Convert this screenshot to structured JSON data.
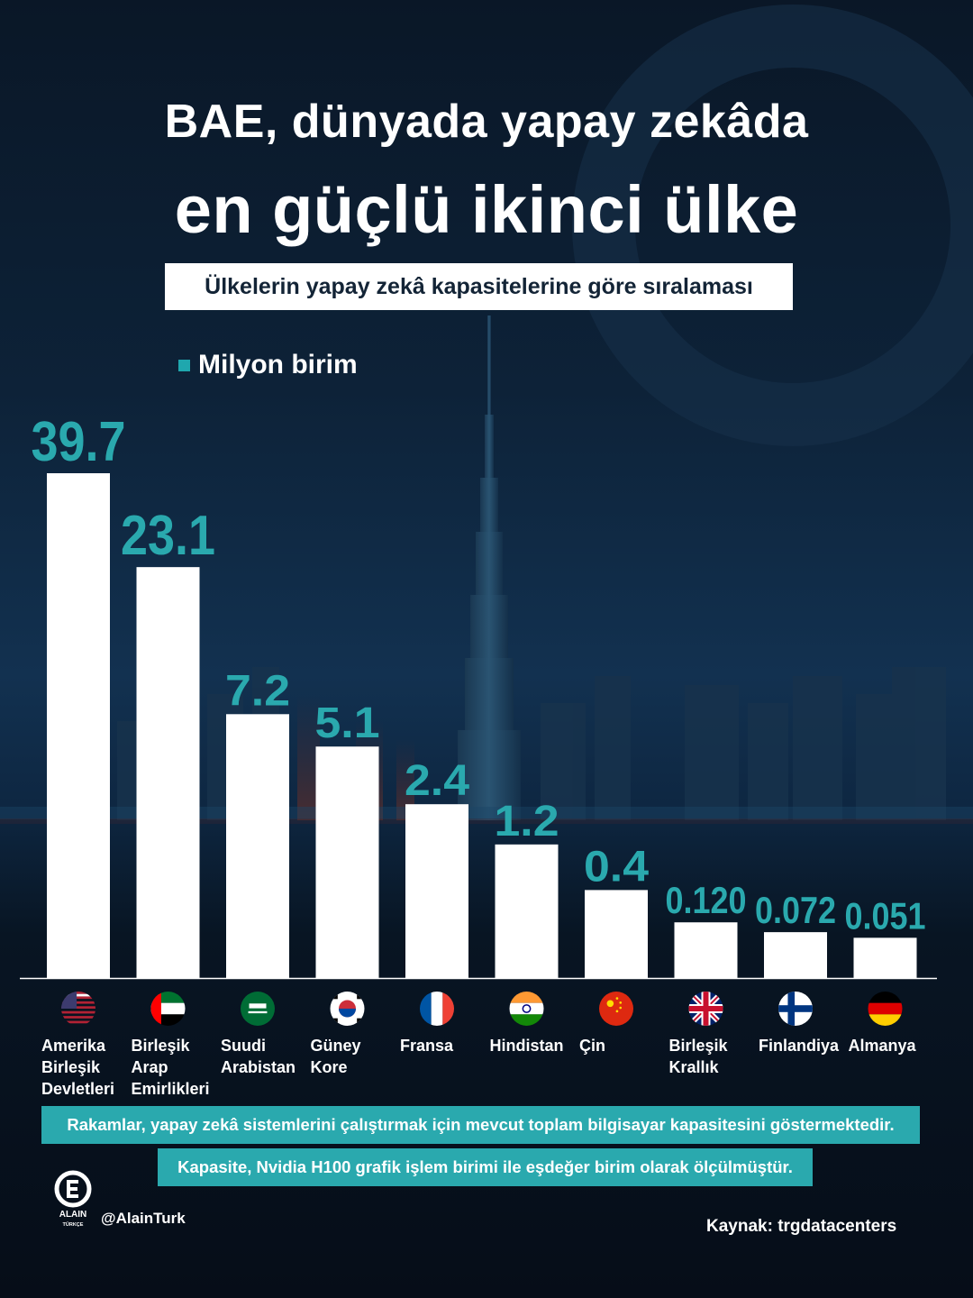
{
  "header": {
    "title_line1": "BAE, dünyada yapay zekâda",
    "title_line2": "en güçlü ikinci ülke",
    "subtitle": "Ülkelerin yapay zekâ kapasitelerine göre sıralaması"
  },
  "legend": {
    "label": "Milyon birim",
    "color": "#1fa7ae"
  },
  "chart_data": {
    "type": "bar",
    "categories": [
      "Amerika\nBirleşik\nDevletleri",
      "Birleşik\nArap\nEmirlikleri",
      "Suudi\nArabistan",
      "Güney\nKore",
      "Fransa",
      "Hindistan",
      "Çin",
      "Birleşik\nKrallık",
      "Finlandiya",
      "Almanya"
    ],
    "series": [
      {
        "name": "Milyon birim",
        "values": [
          39.7,
          23.1,
          7.2,
          5.1,
          2.4,
          1.2,
          0.4,
          0.12,
          0.072,
          0.051
        ],
        "labels": [
          "39.7",
          "23.1",
          "7.2",
          "5.1",
          "2.4",
          "1.2",
          "0.4",
          "0.120",
          "0.072",
          "0.051"
        ]
      }
    ],
    "flags": [
      "us-flag",
      "uae-flag",
      "saudi-flag",
      "south-korea-flag",
      "france-flag",
      "india-flag",
      "china-flag",
      "uk-flag",
      "finland-flag",
      "germany-flag"
    ],
    "bar_color": "#ffffff",
    "label_color": "#2aa9ae",
    "scale": "non-linear (bars not drawn to scale)"
  },
  "notes": [
    "Rakamlar, yapay zekâ sistemlerini çalıştırmak için mevcut toplam bilgisayar kapasitesini göstermektedir.",
    "Kapasite, Nvidia H100 grafik işlem birimi ile eşdeğer birim olarak ölçülmüştür."
  ],
  "branding": {
    "logo": "alain-logo",
    "logo_text": "ALAIN",
    "logo_subtext": "TÜRKÇE",
    "handle": "@AlainTurk"
  },
  "source": "Kaynak: trgdatacenters",
  "colors": {
    "accent": "#2aa9ae",
    "background": "#0d2238"
  }
}
